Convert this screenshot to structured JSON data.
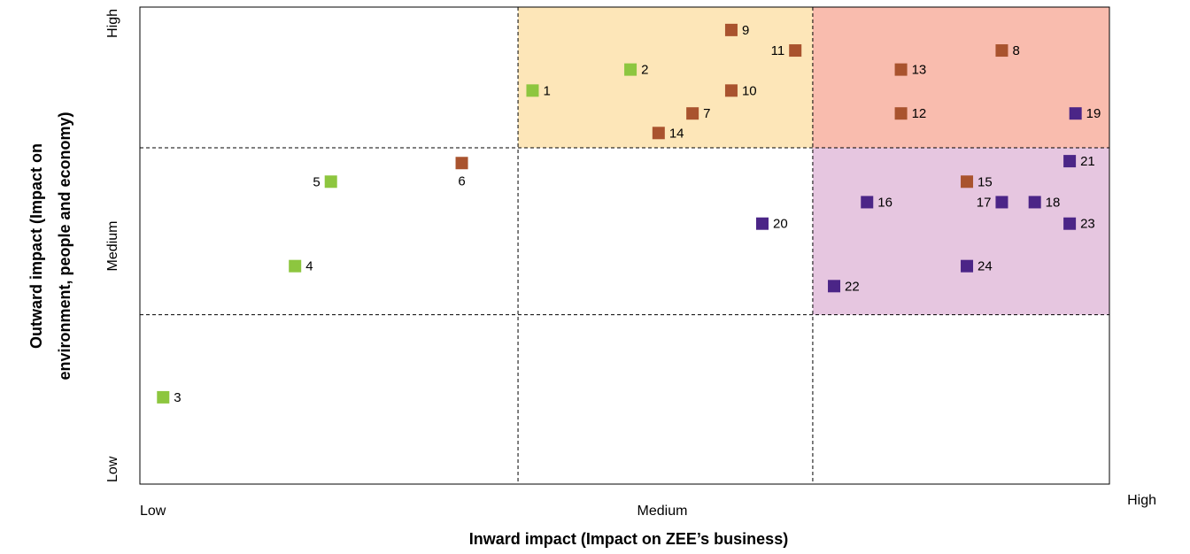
{
  "chart_data": {
    "type": "scatter",
    "xlabel": "Inward impact (Impact on ZEE’s business)",
    "ylabel_lines": [
      "Outward impact (Impact on",
      "environment, people and economy)"
    ],
    "x_ticks": [
      "Low",
      "Medium",
      "High"
    ],
    "y_ticks": [
      "Low",
      "Medium",
      "High"
    ],
    "xlim": [
      0,
      100
    ],
    "ylim": [
      0,
      100
    ],
    "x_dividers": [
      39,
      69.4
    ],
    "y_dividers": [
      35.5,
      70.5
    ],
    "regions": [
      {
        "x": [
          39,
          69.4
        ],
        "y": [
          70.5,
          100
        ],
        "color": "#fde6b8"
      },
      {
        "x": [
          69.4,
          100
        ],
        "y": [
          70.5,
          100
        ],
        "color": "#f9bcae"
      },
      {
        "x": [
          69.4,
          100
        ],
        "y": [
          35.5,
          70.5
        ],
        "color": "#e6c6e0"
      }
    ],
    "series_colors": {
      "green": "#8dc63f",
      "brown": "#a9532e",
      "purple": "#4b2587"
    },
    "points": [
      {
        "label": "1",
        "x": 40.5,
        "y": 82.5,
        "color": "green",
        "label_pos": "right"
      },
      {
        "label": "2",
        "x": 50.6,
        "y": 86.9,
        "color": "green",
        "label_pos": "right"
      },
      {
        "label": "3",
        "x": 2.4,
        "y": 18.2,
        "color": "green",
        "label_pos": "right"
      },
      {
        "label": "4",
        "x": 16.0,
        "y": 45.7,
        "color": "green",
        "label_pos": "right"
      },
      {
        "label": "5",
        "x": 19.7,
        "y": 63.4,
        "color": "green",
        "label_pos": "left"
      },
      {
        "label": "6",
        "x": 33.2,
        "y": 67.3,
        "color": "brown",
        "label_pos": "below"
      },
      {
        "label": "7",
        "x": 57.0,
        "y": 77.7,
        "color": "brown",
        "label_pos": "right"
      },
      {
        "label": "8",
        "x": 88.9,
        "y": 90.9,
        "color": "brown",
        "label_pos": "right"
      },
      {
        "label": "9",
        "x": 61.0,
        "y": 95.2,
        "color": "brown",
        "label_pos": "right"
      },
      {
        "label": "10",
        "x": 61.0,
        "y": 82.5,
        "color": "brown",
        "label_pos": "right"
      },
      {
        "label": "11",
        "x": 67.6,
        "y": 90.9,
        "color": "brown",
        "label_pos": "left"
      },
      {
        "label": "12",
        "x": 78.5,
        "y": 77.7,
        "color": "brown",
        "label_pos": "right"
      },
      {
        "label": "13",
        "x": 78.5,
        "y": 86.9,
        "color": "brown",
        "label_pos": "right"
      },
      {
        "label": "14",
        "x": 53.5,
        "y": 73.6,
        "color": "brown",
        "label_pos": "right"
      },
      {
        "label": "15",
        "x": 85.3,
        "y": 63.4,
        "color": "brown",
        "label_pos": "right"
      },
      {
        "label": "16",
        "x": 75.0,
        "y": 59.1,
        "color": "purple",
        "label_pos": "right"
      },
      {
        "label": "17",
        "x": 88.9,
        "y": 59.1,
        "color": "purple",
        "label_pos": "left"
      },
      {
        "label": "18",
        "x": 92.3,
        "y": 59.1,
        "color": "purple",
        "label_pos": "right"
      },
      {
        "label": "19",
        "x": 96.5,
        "y": 77.7,
        "color": "purple",
        "label_pos": "right"
      },
      {
        "label": "20",
        "x": 64.2,
        "y": 54.6,
        "color": "purple",
        "label_pos": "right"
      },
      {
        "label": "21",
        "x": 95.9,
        "y": 67.7,
        "color": "purple",
        "label_pos": "right"
      },
      {
        "label": "22",
        "x": 71.6,
        "y": 41.5,
        "color": "purple",
        "label_pos": "right"
      },
      {
        "label": "23",
        "x": 95.9,
        "y": 54.6,
        "color": "purple",
        "label_pos": "right"
      },
      {
        "label": "24",
        "x": 85.3,
        "y": 45.7,
        "color": "purple",
        "label_pos": "right"
      }
    ]
  }
}
